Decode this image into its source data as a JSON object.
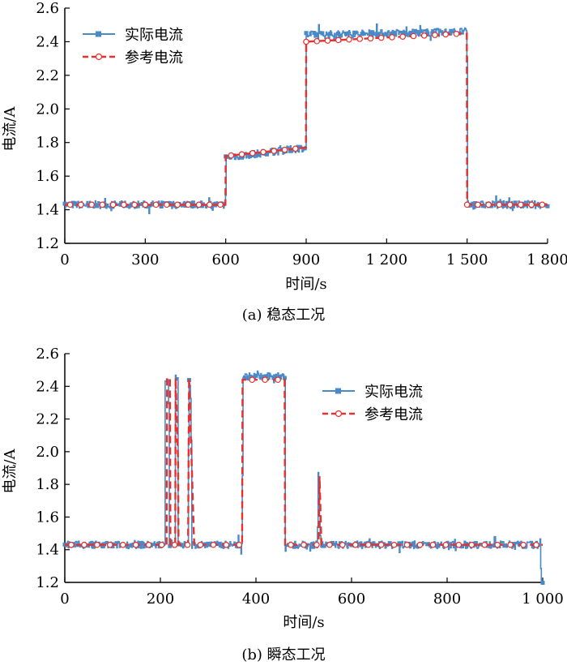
{
  "colors": {
    "actual": "#4a89c8",
    "reference": "#e8312c",
    "axis": "#000000"
  },
  "chart_data": [
    {
      "type": "line",
      "caption": "(a)  稳态工况",
      "xlabel": "时间/s",
      "ylabel": "电流/A",
      "xlim": [
        0,
        1800
      ],
      "ylim": [
        1.2,
        2.6
      ],
      "xticks": [
        0,
        300,
        600,
        900,
        1200,
        1500,
        1800
      ],
      "xtick_labels": [
        "0",
        "300",
        "600",
        "900",
        "1 200",
        "1 500",
        "1 800"
      ],
      "yticks": [
        1.2,
        1.4,
        1.6,
        1.8,
        2.0,
        2.2,
        2.4,
        2.6
      ],
      "ytick_labels": [
        "1.2",
        "1.4",
        "1.6",
        "1.8",
        "2.0",
        "2.2",
        "2.4",
        "2.6"
      ],
      "legend_position": "top-left",
      "series": [
        {
          "name": "实际电流",
          "style": "solid-square-marker",
          "x": [
            0,
            599,
            600,
            899,
            900,
            1499,
            1500,
            1800
          ],
          "y": [
            1.43,
            1.43,
            1.71,
            1.77,
            2.44,
            2.46,
            1.43,
            1.43
          ]
        },
        {
          "name": "参考电流",
          "style": "dashed-circle-marker",
          "x": [
            0,
            599,
            600,
            899,
            900,
            1499,
            1500,
            1800
          ],
          "y": [
            1.43,
            1.43,
            1.72,
            1.77,
            2.4,
            2.45,
            1.43,
            1.43
          ]
        }
      ]
    },
    {
      "type": "line",
      "caption": "(b)  瞬态工况",
      "xlabel": "时间/s",
      "ylabel": "电流/A",
      "xlim": [
        0,
        1000
      ],
      "ylim": [
        1.2,
        2.6
      ],
      "xticks": [
        0,
        200,
        400,
        600,
        800,
        1000
      ],
      "xtick_labels": [
        "0",
        "200",
        "400",
        "600",
        "800",
        "1 000"
      ],
      "yticks": [
        1.2,
        1.4,
        1.6,
        1.8,
        2.0,
        2.2,
        2.4,
        2.6
      ],
      "ytick_labels": [
        "1.2",
        "1.4",
        "1.6",
        "1.8",
        "2.0",
        "2.2",
        "2.4",
        "2.6"
      ],
      "legend_position": "top-right",
      "series": [
        {
          "name": "实际电流",
          "style": "solid-square-marker",
          "x": [
            0,
            209,
            210,
            217,
            218,
            230,
            231,
            236,
            237,
            258,
            259,
            264,
            265,
            275,
            276,
            371,
            372,
            460,
            461,
            528,
            530,
            535,
            537,
            990,
            995,
            996
          ],
          "y": [
            1.43,
            1.43,
            2.45,
            2.45,
            1.43,
            1.43,
            2.45,
            2.45,
            1.43,
            1.43,
            2.47,
            2.3,
            1.43,
            1.43,
            1.43,
            1.43,
            2.46,
            2.46,
            1.43,
            1.43,
            1.89,
            1.43,
            1.43,
            1.43,
            1.43,
            1.2
          ]
        },
        {
          "name": "参考电流",
          "style": "dashed-circle-marker",
          "x": [
            0,
            213,
            214,
            220,
            221,
            231,
            232,
            237,
            238,
            258,
            260,
            270,
            271,
            371,
            372,
            460,
            461,
            531,
            533,
            537,
            538,
            1000
          ],
          "y": [
            1.43,
            1.43,
            2.45,
            2.45,
            1.43,
            1.43,
            2.45,
            1.95,
            1.43,
            1.43,
            2.45,
            1.5,
            1.43,
            1.43,
            2.44,
            2.44,
            1.43,
            1.43,
            1.85,
            1.43,
            1.43,
            1.43
          ]
        }
      ]
    }
  ]
}
